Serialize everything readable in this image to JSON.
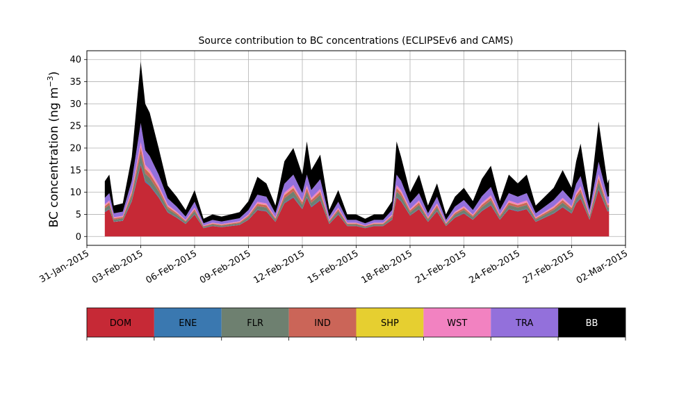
{
  "chart_data": {
    "type": "area",
    "stacked": true,
    "title": "Source contribution to BC concentrations (ECLIPSEv6 and CAMS)",
    "ylabel_main": "BC concentration (ng m",
    "ylabel_sup": "−3",
    "ylabel_close": ")",
    "xlabel": "",
    "x_axis_type": "date",
    "xlim": [
      "2015-01-31",
      "2015-03-02"
    ],
    "ylim": [
      -2,
      42
    ],
    "grid": true,
    "xticks": [
      "31-Jan-2015",
      "03-Feb-2015",
      "06-Feb-2015",
      "09-Feb-2015",
      "12-Feb-2015",
      "15-Feb-2015",
      "18-Feb-2015",
      "21-Feb-2015",
      "24-Feb-2015",
      "27-Feb-2015",
      "02-Mar-2015"
    ],
    "yticks": [
      0,
      5,
      10,
      15,
      20,
      25,
      30,
      35,
      40
    ],
    "legend_position": "bottom (separate color bar)",
    "series": [
      {
        "name": "DOM",
        "color": "#c62936"
      },
      {
        "name": "ENE",
        "color": "#3a78b0"
      },
      {
        "name": "FLR",
        "color": "#6e8070"
      },
      {
        "name": "IND",
        "color": "#cb6558"
      },
      {
        "name": "SHP",
        "color": "#e6cf30"
      },
      {
        "name": "WST",
        "color": "#f282c1"
      },
      {
        "name": "TRA",
        "color": "#9370db"
      },
      {
        "name": "BB",
        "color": "#000000"
      }
    ],
    "total_profile": {
      "dates": [
        "2015-02-01",
        "2015-02-01T06",
        "2015-02-01T12",
        "2015-02-02",
        "2015-02-02T12",
        "2015-02-03",
        "2015-02-03T06",
        "2015-02-03T12",
        "2015-02-04",
        "2015-02-04T12",
        "2015-02-05",
        "2015-02-05T12",
        "2015-02-06",
        "2015-02-06T12",
        "2015-02-07",
        "2015-02-07T12",
        "2015-02-08",
        "2015-02-08T12",
        "2015-02-09",
        "2015-02-09T12",
        "2015-02-10",
        "2015-02-10T12",
        "2015-02-11",
        "2015-02-11T12",
        "2015-02-12",
        "2015-02-12T06",
        "2015-02-12T12",
        "2015-02-13",
        "2015-02-13T12",
        "2015-02-14",
        "2015-02-14T12",
        "2015-02-15",
        "2015-02-15T12",
        "2015-02-16",
        "2015-02-16T12",
        "2015-02-17",
        "2015-02-17T06",
        "2015-02-17T12",
        "2015-02-18",
        "2015-02-18T12",
        "2015-02-19",
        "2015-02-19T12",
        "2015-02-20",
        "2015-02-20T12",
        "2015-02-21",
        "2015-02-21T12",
        "2015-02-22",
        "2015-02-22T12",
        "2015-02-23",
        "2015-02-23T12",
        "2015-02-24",
        "2015-02-24T12",
        "2015-02-25",
        "2015-02-25T12",
        "2015-02-26",
        "2015-02-26T12",
        "2015-02-27",
        "2015-02-27T06",
        "2015-02-27T12",
        "2015-02-28",
        "2015-02-28T12",
        "2015-03-01",
        "2015-03-01T02"
      ],
      "totals": [
        12.5,
        14,
        7,
        7.5,
        18,
        39.5,
        30,
        28,
        20,
        11.5,
        9,
        6,
        10.5,
        4,
        5,
        4.5,
        5,
        5.5,
        8,
        13.5,
        12,
        7,
        17,
        20,
        14,
        21.5,
        15,
        18.5,
        6,
        10.5,
        5,
        5,
        4,
        5,
        5,
        8,
        21.5,
        18,
        10,
        14,
        7,
        12,
        5,
        9,
        11,
        8,
        13,
        16,
        8,
        14,
        12,
        14,
        7,
        9,
        11,
        15,
        11,
        17,
        21,
        8,
        26,
        12,
        13
      ]
    }
  }
}
